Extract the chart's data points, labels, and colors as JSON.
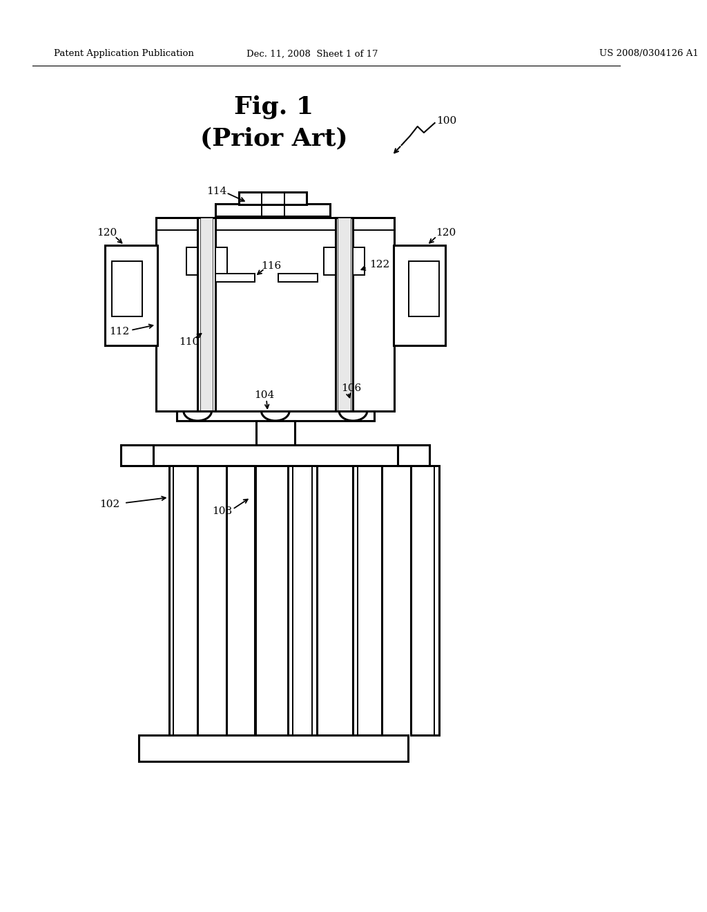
{
  "bg_color": "#ffffff",
  "line_color": "#000000",
  "header_left": "Patent Application Publication",
  "header_mid": "Dec. 11, 2008  Sheet 1 of 17",
  "header_right": "US 2008/0304126 A1",
  "fig_title_line1": "Fig. 1",
  "fig_title_line2": "(Prior Art)"
}
